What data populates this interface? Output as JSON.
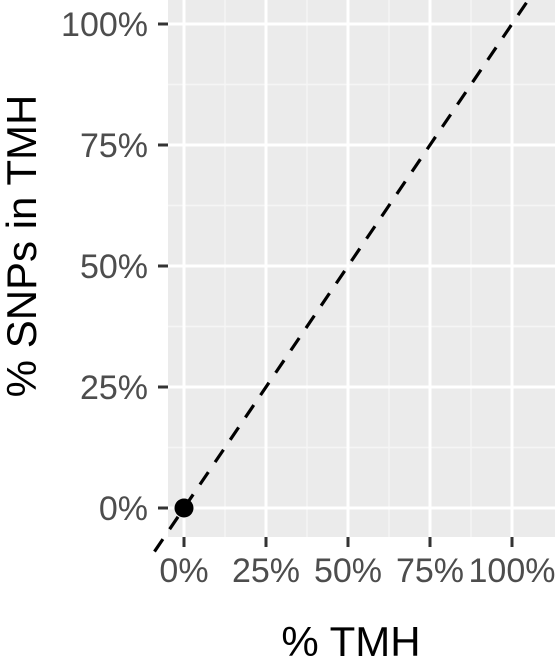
{
  "chart_data": {
    "type": "scatter",
    "xlabel": "% TMH",
    "ylabel": "% SNPs in TMH",
    "xlim": [
      -0.09,
      1.045
    ],
    "ylim": [
      -0.07,
      1.04
    ],
    "x_ticks": [
      0,
      0.25,
      0.5,
      0.75,
      1.0
    ],
    "x_tick_labels": [
      "0%",
      "25%",
      "50%",
      "75%",
      "100%"
    ],
    "y_ticks": [
      0,
      0.25,
      0.5,
      0.75,
      1.0
    ],
    "y_tick_labels": [
      "0%",
      "25%",
      "50%",
      "75%",
      "100%"
    ],
    "grid": true,
    "points": [
      {
        "x": 0,
        "y": 0
      }
    ],
    "reference_line": {
      "style": "dashed",
      "slope": 1,
      "intercept": 0
    },
    "colors": {
      "panel_background": "#ebebeb",
      "grid_major": "#ffffff",
      "grid_minor": "#f5f5f5",
      "point": "#000000",
      "line": "#000000",
      "tick": "#333333",
      "tick_label": "#4d4d4d"
    }
  }
}
